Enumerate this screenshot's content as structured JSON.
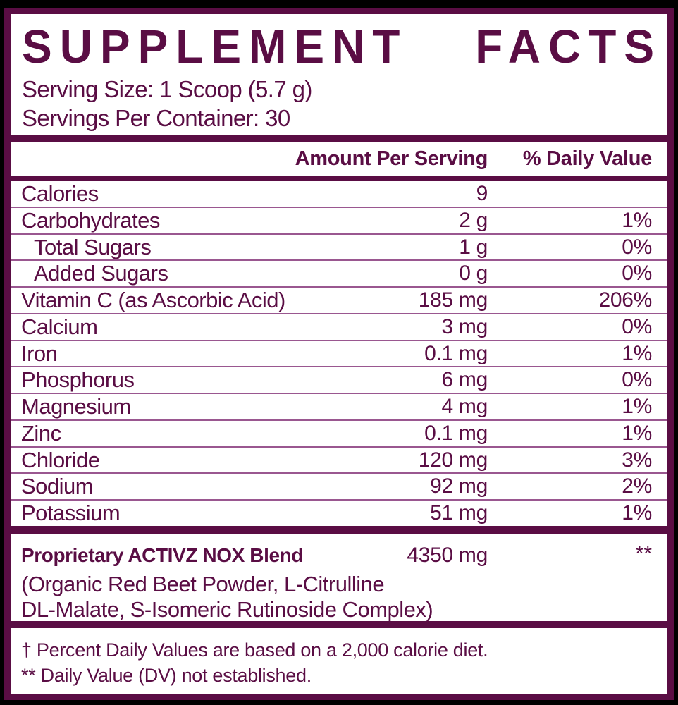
{
  "label": {
    "title_word1": "SUPPLEMENT",
    "title_word2": "FACTS",
    "serving_size": "Serving Size: 1 Scoop (5.7 g)",
    "servings_per_container": "Servings Per Container: 30",
    "columns": {
      "amount": "Amount Per Serving",
      "daily_value": "% Daily Value"
    },
    "rows": [
      {
        "name": "Calories",
        "amount": "9",
        "dv": "",
        "indent": false
      },
      {
        "name": "Carbohydrates",
        "amount": "2 g",
        "dv": "1%",
        "indent": false
      },
      {
        "name": "Total Sugars",
        "amount": "1 g",
        "dv": "0%",
        "indent": true
      },
      {
        "name": "Added Sugars",
        "amount": "0 g",
        "dv": "0%",
        "indent": true
      },
      {
        "name": "Vitamin C (as Ascorbic Acid)",
        "amount": "185 mg",
        "dv": "206%",
        "indent": false
      },
      {
        "name": "Calcium",
        "amount": "3 mg",
        "dv": "0%",
        "indent": false
      },
      {
        "name": "Iron",
        "amount": "0.1 mg",
        "dv": "1%",
        "indent": false
      },
      {
        "name": "Phosphorus",
        "amount": "6 mg",
        "dv": "0%",
        "indent": false
      },
      {
        "name": "Magnesium",
        "amount": "4 mg",
        "dv": "1%",
        "indent": false
      },
      {
        "name": "Zinc",
        "amount": "0.1 mg",
        "dv": "1%",
        "indent": false
      },
      {
        "name": "Chloride",
        "amount": "120 mg",
        "dv": "3%",
        "indent": false
      },
      {
        "name": "Sodium",
        "amount": "92 mg",
        "dv": "2%",
        "indent": false
      },
      {
        "name": "Potassium",
        "amount": "51 mg",
        "dv": "1%",
        "indent": false
      }
    ],
    "blend": {
      "name": "Proprietary ACTIVZ NOX Blend",
      "amount": "4350 mg",
      "dv": "**",
      "ingredients_line1": "(Organic Red Beet Powder, L-Citrulline",
      "ingredients_line2": "DL-Malate, S-Isomeric Rutinoside Complex)"
    },
    "footnotes": {
      "daily_value_note": "† Percent Daily Values are based on a 2,000 calorie diet.",
      "not_established_note": "** Daily Value (DV) not established."
    },
    "colors": {
      "maroon": "#5a0d44",
      "separator": "#9a5790",
      "panel": "#ffffff",
      "background": "#000000"
    }
  }
}
